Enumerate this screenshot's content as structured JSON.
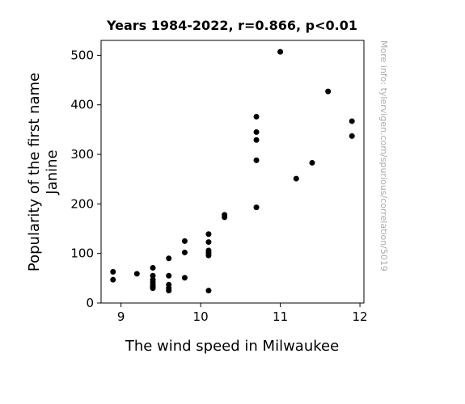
{
  "chart_data": {
    "type": "scatter",
    "title": "Years 1984-2022, r=0.866, p<0.01",
    "xlabel": "The wind speed in Milwaukee",
    "ylabel_lines": [
      "Popularity of the first name",
      "Janine"
    ],
    "xlim": [
      8.75,
      12.05
    ],
    "ylim": [
      0,
      530
    ],
    "xticks": [
      9,
      10,
      11,
      12
    ],
    "yticks": [
      0,
      100,
      200,
      300,
      400,
      500
    ],
    "watermark": "More info: tylervigen.com/spurious/correlation/5019",
    "point_color": "#000000",
    "points": [
      {
        "x": 8.9,
        "y": 63
      },
      {
        "x": 8.9,
        "y": 47
      },
      {
        "x": 9.2,
        "y": 59
      },
      {
        "x": 9.4,
        "y": 71
      },
      {
        "x": 9.4,
        "y": 55
      },
      {
        "x": 9.4,
        "y": 47
      },
      {
        "x": 9.4,
        "y": 42
      },
      {
        "x": 9.4,
        "y": 37
      },
      {
        "x": 9.4,
        "y": 33
      },
      {
        "x": 9.4,
        "y": 30
      },
      {
        "x": 9.6,
        "y": 90
      },
      {
        "x": 9.6,
        "y": 55
      },
      {
        "x": 9.6,
        "y": 37
      },
      {
        "x": 9.6,
        "y": 30
      },
      {
        "x": 9.6,
        "y": 25
      },
      {
        "x": 9.8,
        "y": 125
      },
      {
        "x": 9.8,
        "y": 102
      },
      {
        "x": 9.8,
        "y": 51
      },
      {
        "x": 10.1,
        "y": 139
      },
      {
        "x": 10.1,
        "y": 123
      },
      {
        "x": 10.1,
        "y": 106
      },
      {
        "x": 10.1,
        "y": 101
      },
      {
        "x": 10.1,
        "y": 96
      },
      {
        "x": 10.1,
        "y": 25
      },
      {
        "x": 10.3,
        "y": 178
      },
      {
        "x": 10.3,
        "y": 173
      },
      {
        "x": 10.7,
        "y": 376
      },
      {
        "x": 10.7,
        "y": 345
      },
      {
        "x": 10.7,
        "y": 329
      },
      {
        "x": 10.7,
        "y": 288
      },
      {
        "x": 10.7,
        "y": 193
      },
      {
        "x": 11.0,
        "y": 507
      },
      {
        "x": 11.2,
        "y": 251
      },
      {
        "x": 11.4,
        "y": 283
      },
      {
        "x": 11.6,
        "y": 427
      },
      {
        "x": 11.9,
        "y": 367
      },
      {
        "x": 11.9,
        "y": 337
      }
    ]
  }
}
